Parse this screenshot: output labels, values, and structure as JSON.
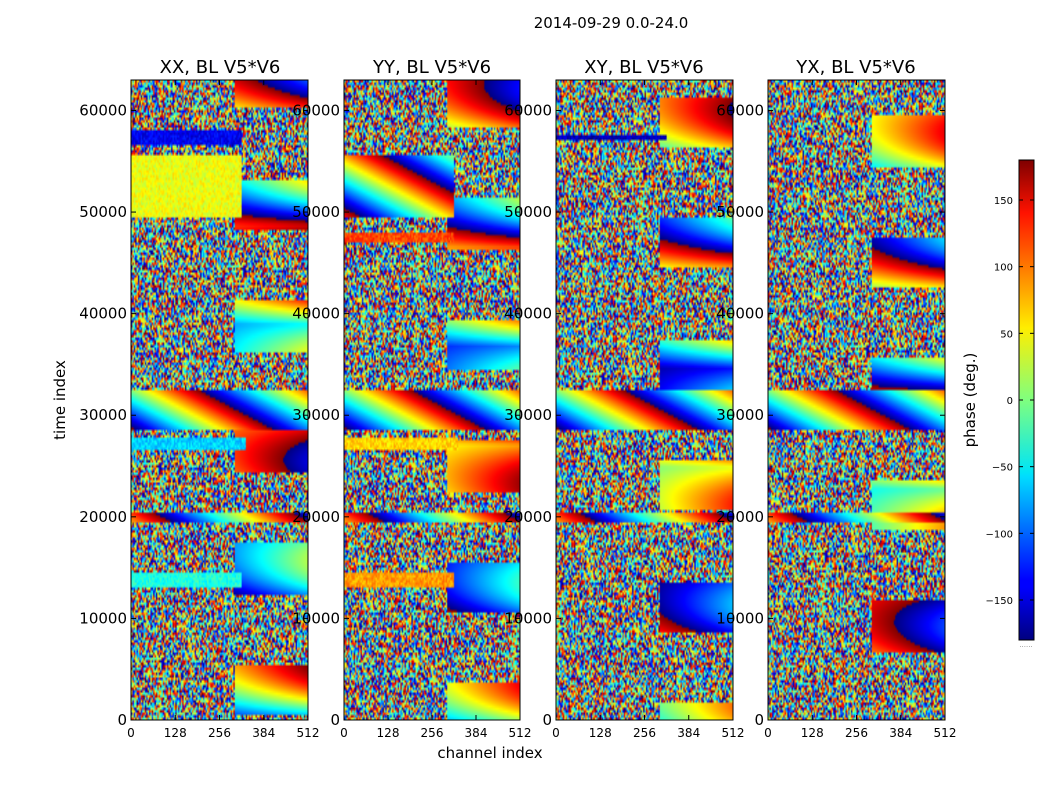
{
  "figure": {
    "suptitle": "2014-09-29 0.0-24.0",
    "xlabel": "channel index",
    "ylabel": "time index"
  },
  "colorbar": {
    "label": "phase (deg.)",
    "range": [
      -180,
      180
    ],
    "ticks": [
      150,
      100,
      50,
      0,
      -50,
      -100,
      -150
    ],
    "tick_labels": [
      "150",
      "100",
      "50",
      "0",
      "−50",
      "−100",
      "−150"
    ],
    "colormap": "jet",
    "footnote": "......"
  },
  "chart_data": [
    {
      "type": "heatmap",
      "title": "XX, BL V5*V6",
      "x_range": [
        0,
        512
      ],
      "y_range": [
        0,
        63000
      ],
      "x_ticks": [
        0,
        128,
        256,
        384,
        512
      ],
      "y_ticks": [
        0,
        10000,
        20000,
        30000,
        40000,
        50000,
        60000
      ],
      "value_range": [
        -180,
        180
      ],
      "features": [
        {
          "y": [
            49500,
            55500
          ],
          "x": [
            0,
            320
          ],
          "kind": "flat",
          "phase": 40
        },
        {
          "y": [
            26500,
            27800
          ],
          "x": [
            0,
            330
          ],
          "kind": "flat",
          "phase": -60
        },
        {
          "y": [
            13000,
            14500
          ],
          "x": [
            0,
            320
          ],
          "kind": "flat",
          "phase": -35
        },
        {
          "y": [
            28500,
            32500
          ],
          "x": [
            0,
            512
          ],
          "kind": "fringe"
        },
        {
          "y": [
            19500,
            20500
          ],
          "x": [
            0,
            512
          ],
          "kind": "fringe"
        },
        {
          "y": [
            56500,
            58000
          ],
          "x": [
            0,
            320
          ],
          "kind": "flat",
          "phase": -140
        }
      ]
    },
    {
      "type": "heatmap",
      "title": "YY, BL V5*V6",
      "x_range": [
        0,
        512
      ],
      "y_range": [
        0,
        63000
      ],
      "x_ticks": [
        0,
        128,
        256,
        384,
        512
      ],
      "y_ticks": [
        0,
        10000,
        20000,
        30000,
        40000,
        50000,
        60000
      ],
      "value_range": [
        -180,
        180
      ],
      "features": [
        {
          "y": [
            49500,
            55500
          ],
          "x": [
            0,
            320
          ],
          "kind": "fringe"
        },
        {
          "y": [
            26500,
            27800
          ],
          "x": [
            0,
            330
          ],
          "kind": "flat",
          "phase": 60
        },
        {
          "y": [
            13000,
            14500
          ],
          "x": [
            0,
            320
          ],
          "kind": "flat",
          "phase": 80
        },
        {
          "y": [
            47000,
            48000
          ],
          "x": [
            0,
            320
          ],
          "kind": "flat",
          "phase": 110
        },
        {
          "y": [
            28500,
            32500
          ],
          "x": [
            0,
            512
          ],
          "kind": "fringe"
        },
        {
          "y": [
            19500,
            20500
          ],
          "x": [
            0,
            512
          ],
          "kind": "fringe"
        }
      ]
    },
    {
      "type": "heatmap",
      "title": "XY, BL V5*V6",
      "x_range": [
        0,
        512
      ],
      "y_range": [
        0,
        63000
      ],
      "x_ticks": [
        0,
        128,
        256,
        384,
        512
      ],
      "y_ticks": [
        0,
        10000,
        20000,
        30000,
        40000,
        50000,
        60000
      ],
      "value_range": [
        -180,
        180
      ],
      "features": [
        {
          "y": [
            57000,
            57600
          ],
          "x": [
            0,
            320
          ],
          "kind": "flat",
          "phase": -160
        },
        {
          "y": [
            28500,
            32500
          ],
          "x": [
            0,
            512
          ],
          "kind": "fringe"
        },
        {
          "y": [
            19500,
            20500
          ],
          "x": [
            0,
            512
          ],
          "kind": "fringe"
        }
      ]
    },
    {
      "type": "heatmap",
      "title": "YX, BL V5*V6",
      "x_range": [
        0,
        512
      ],
      "y_range": [
        0,
        63000
      ],
      "x_ticks": [
        0,
        128,
        256,
        384,
        512
      ],
      "y_ticks": [
        0,
        10000,
        20000,
        30000,
        40000,
        50000,
        60000
      ],
      "value_range": [
        -180,
        180
      ],
      "features": [
        {
          "y": [
            28500,
            32500
          ],
          "x": [
            0,
            512
          ],
          "kind": "fringe"
        },
        {
          "y": [
            19500,
            20500
          ],
          "x": [
            0,
            512
          ],
          "kind": "fringe"
        }
      ]
    }
  ]
}
